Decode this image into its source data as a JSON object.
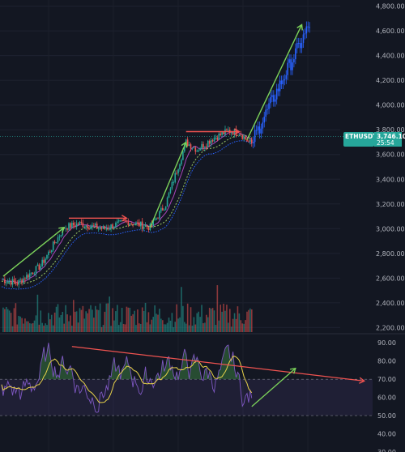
{
  "chart_data": [
    {
      "type": "candlestick",
      "title": "",
      "symbol": "ETHUSDT",
      "last_price": "3,746.10",
      "countdown": "25:54",
      "ylim": [
        2150,
        4850
      ],
      "y_ticks": [
        "4,800.00",
        "4,600.00",
        "4,400.00",
        "4,200.00",
        "4,000.00",
        "3,800.00",
        "3,600.00",
        "3,400.00",
        "3,200.00",
        "3,000.00",
        "2,800.00",
        "2,600.00",
        "2,400.00",
        "2,200.00"
      ],
      "colors": {
        "background": "#131722",
        "up": "#26a69a",
        "down": "#ef5350",
        "projection": "#2962ff",
        "lower_band": "#2962ff",
        "ma_green": "#9ccc65",
        "ma_purple": "#ab47bc",
        "badge": "#26a69a",
        "arrow_green": "#7cd35a",
        "arrow_red": "#ef5350"
      },
      "trend_arrows_up": [
        {
          "from": [
            1,
            2615
          ],
          "to": [
            40,
            3010
          ]
        },
        {
          "from": [
            95,
            3010
          ],
          "to": [
            118,
            3700
          ]
        },
        {
          "from": [
            157,
            3720
          ],
          "to": [
            192,
            4650
          ]
        }
      ],
      "resistance_arrows": [
        {
          "from": [
            43,
            3085
          ],
          "to": [
            80,
            3085
          ]
        },
        {
          "from": [
            118,
            3785
          ],
          "to": [
            152,
            3785
          ]
        }
      ],
      "volume_panel": {
        "visible": true
      },
      "projected_bars": "dashed-blue-continuation"
    },
    {
      "type": "line",
      "title": "",
      "ylim": [
        30,
        95
      ],
      "y_ticks": [
        "90.00",
        "80.00",
        "70.00",
        "60.00",
        "50.00",
        "40.00",
        "30.00"
      ],
      "band": [
        50,
        70
      ],
      "dashed_levels": [
        70,
        50
      ],
      "series": [
        {
          "values_key": "rsi",
          "color": "#7e57c2"
        },
        {
          "values_key": "rsi_ma",
          "color": "#e8d24a"
        }
      ],
      "divergence_line": {
        "from": [
          45,
          88
        ],
        "to": [
          232,
          69
        ]
      },
      "up_arrow": {
        "from": [
          160,
          55
        ],
        "to": [
          188,
          76
        ]
      }
    }
  ]
}
